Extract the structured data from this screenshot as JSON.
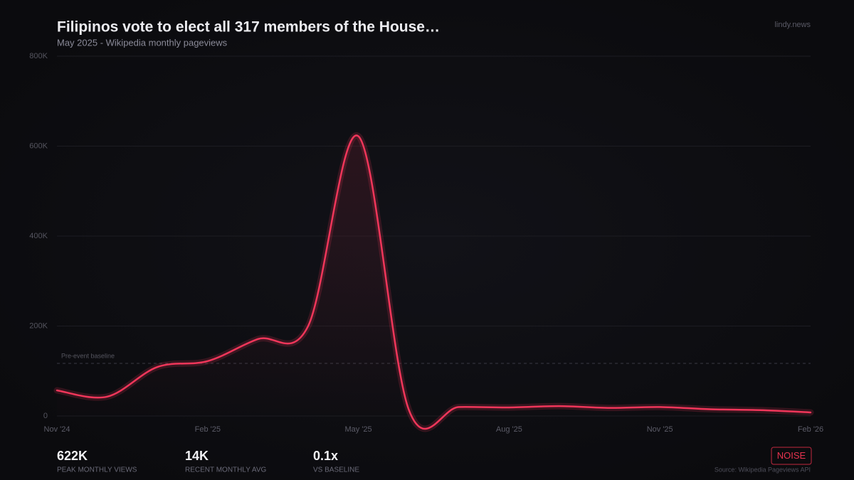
{
  "chart_data": {
    "type": "line",
    "title": "Filipinos vote to elect all 317 members of the House…",
    "subtitle": "May 2025  -  Wikipedia monthly pageviews",
    "categories": [
      "Nov '24",
      null,
      null,
      "Feb '25",
      null,
      null,
      "May '25",
      null,
      null,
      "Aug '25",
      null,
      null,
      "Nov '25",
      null,
      null,
      "Feb '26"
    ],
    "series": [
      {
        "name": "Monthly pageviews",
        "color": "#f0365a",
        "values": [
          57000,
          43000,
          109000,
          122000,
          171000,
          200000,
          622000,
          15000,
          20000,
          19000,
          22000,
          18000,
          20000,
          15000,
          13000,
          8000
        ]
      }
    ],
    "ylim": [
      0,
      800000
    ],
    "yticks": [
      {
        "value": 0,
        "label": "0"
      },
      {
        "value": 200000,
        "label": "200K"
      },
      {
        "value": 400000,
        "label": "400K"
      },
      {
        "value": 600000,
        "label": "600K"
      },
      {
        "value": 800000,
        "label": "800K"
      }
    ],
    "grid": true,
    "baseline": {
      "label": "Pre-event baseline",
      "value": 117000
    }
  },
  "brand": "lindy.news",
  "stats": [
    {
      "value": "622K",
      "label": "PEAK MONTHLY VIEWS"
    },
    {
      "value": "14K",
      "label": "RECENT MONTHLY AVG"
    },
    {
      "value": "0.1x",
      "label": "VS BASELINE"
    }
  ],
  "badge": "NOISE",
  "source": "Source: Wikipedia Pageviews API"
}
